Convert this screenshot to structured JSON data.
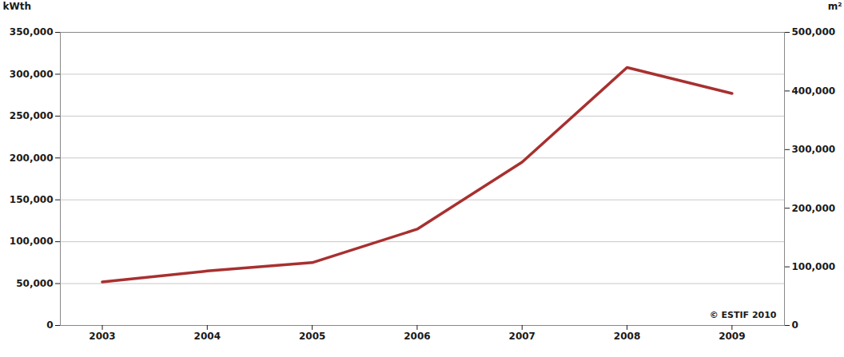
{
  "chart_data": {
    "type": "line",
    "x": [
      2003,
      2004,
      2005,
      2006,
      2007,
      2008,
      2009
    ],
    "values": [
      52000,
      65000,
      75000,
      115000,
      195000,
      308000,
      277000
    ],
    "color": "#a83030",
    "xlim": [
      2002.6,
      2009.5
    ],
    "xticks": [
      2003,
      2004,
      2005,
      2006,
      2007,
      2008,
      2009
    ],
    "ylim": [
      0,
      350000
    ],
    "yticks": [
      0,
      {
        "value": 50000,
        "label": "50,000"
      },
      {
        "value": 100000,
        "label": "100,000"
      },
      {
        "value": 150000,
        "label": "150,000"
      },
      {
        "value": 200000,
        "label": "200,000"
      },
      {
        "value": 250000,
        "label": "250,000"
      },
      {
        "value": 300000,
        "label": "300,000"
      },
      {
        "value": 350000,
        "label": "350,000"
      }
    ],
    "y2lim": [
      0,
      500000
    ],
    "y2ticks": [
      0,
      {
        "value": 100000,
        "label": "100,000"
      },
      {
        "value": 200000,
        "label": "200,000"
      },
      {
        "value": 300000,
        "label": "300,000"
      },
      {
        "value": 400000,
        "label": "400,000"
      },
      {
        "value": 500000,
        "label": "500,000"
      }
    ],
    "ylabel": "kWth",
    "y2label": "m²",
    "annotation": "© ESTIF 2010",
    "grid": true
  }
}
